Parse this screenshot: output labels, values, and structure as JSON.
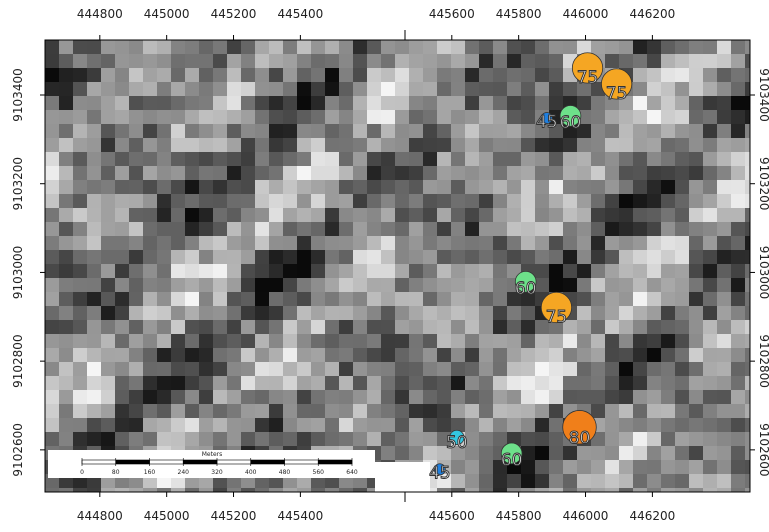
{
  "map": {
    "ylim": [
      9102505,
      9103524
    ],
    "yticks": [
      9102600,
      9102800,
      9103000,
      9103200,
      9103400
    ],
    "panels": [
      {
        "xlim": [
          444636,
          445713
        ],
        "xticks": [
          444800,
          445000,
          445200,
          445400
        ],
        "points": []
      },
      {
        "xlim": [
          445460,
          446492
        ],
        "xticks": [
          445600,
          445800,
          446000,
          446200
        ],
        "points": [
          {
            "x": 446006,
            "y": 9103461,
            "value": 75,
            "color": "#f5a623"
          },
          {
            "x": 446093,
            "y": 9103425,
            "value": 75,
            "color": "#f5a623"
          },
          {
            "x": 445884,
            "y": 9103348,
            "value": 45,
            "color": "#1e7fe0"
          },
          {
            "x": 445955,
            "y": 9103353,
            "value": 60,
            "color": "#6de08a"
          },
          {
            "x": 445821,
            "y": 9102979,
            "value": 60,
            "color": "#6de08a"
          },
          {
            "x": 445913,
            "y": 9102921,
            "value": 75,
            "color": "#f5a623"
          },
          {
            "x": 445982,
            "y": 9102651,
            "value": 80,
            "color": "#f07f1a"
          },
          {
            "x": 445615,
            "y": 9102628,
            "value": 50,
            "color": "#33c6e0"
          },
          {
            "x": 445779,
            "y": 9102592,
            "value": 60,
            "color": "#6de08a"
          },
          {
            "x": 445564,
            "y": 9102556,
            "value": 45,
            "color": "#1e7fe0"
          }
        ]
      }
    ],
    "scale_bar": {
      "title": "Meters",
      "ticks": [
        0,
        80,
        160,
        240,
        320,
        400,
        480,
        560,
        640
      ]
    }
  }
}
